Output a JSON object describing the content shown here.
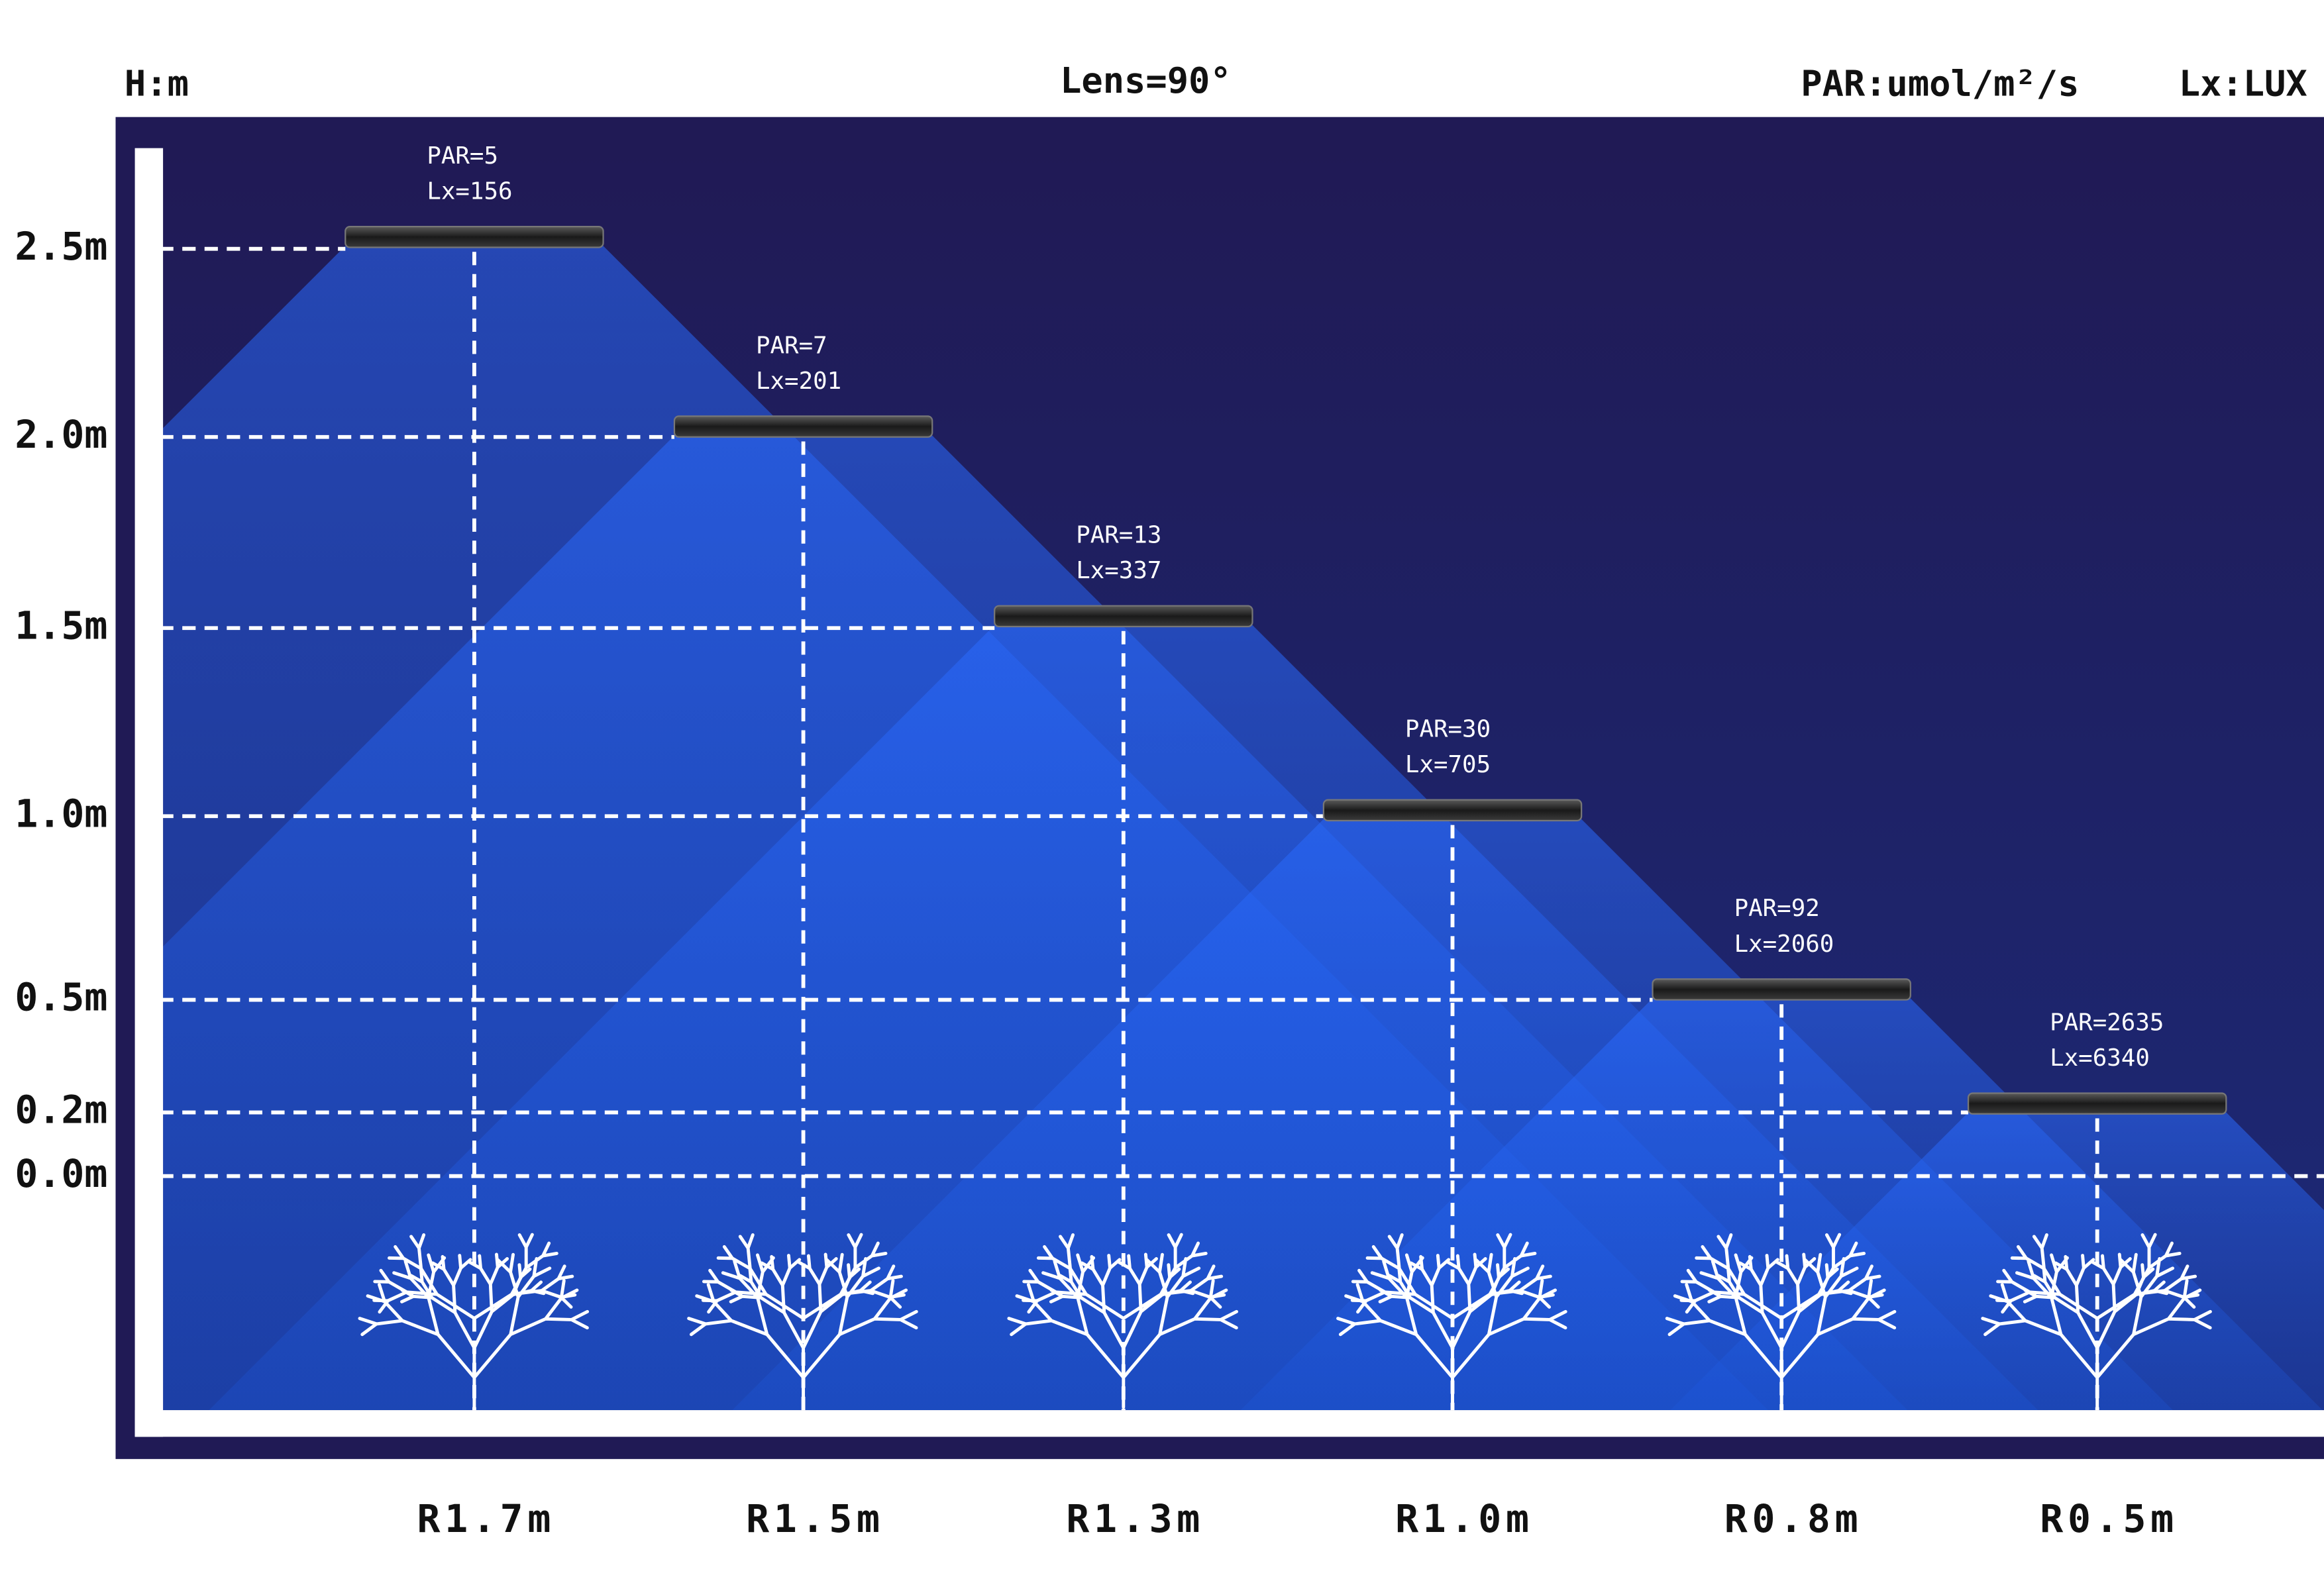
{
  "header": {
    "height_unit": "H:m",
    "lens": "Lens=90°",
    "par_unit": "PAR:umol/m²/s",
    "lux_unit": "Lx:LUX"
  },
  "height_labels": [
    "2.5m",
    "2.0m",
    "1.5m",
    "1.0m",
    "0.5m",
    "0.2m",
    "0.0m"
  ],
  "lights": [
    {
      "par": "PAR=5",
      "lux": "Lx=156",
      "range": "R1.7m"
    },
    {
      "par": "PAR=7",
      "lux": "Lx=201",
      "range": "R1.5m"
    },
    {
      "par": "PAR=13",
      "lux": "Lx=337",
      "range": "R1.3m"
    },
    {
      "par": "PAR=30",
      "lux": "Lx=705",
      "range": "R1.0m"
    },
    {
      "par": "PAR=92",
      "lux": "Lx=2060",
      "range": "R0.8m"
    },
    {
      "par": "PAR=2635",
      "lux": "Lx=6340",
      "range": "R0.5m"
    }
  ]
}
